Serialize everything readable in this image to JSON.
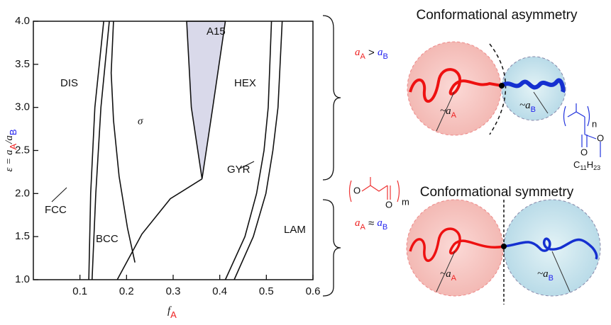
{
  "chart_data": {
    "type": "phase-diagram",
    "xlim": [
      0,
      0.6
    ],
    "ylim": [
      1,
      4
    ],
    "xticks": [
      0.1,
      0.2,
      0.3,
      0.4,
      0.5,
      0.6
    ],
    "yticks": [
      {
        "value": 1,
        "label": "1.0"
      },
      1.5,
      {
        "value": 2,
        "label": "2.0"
      },
      2.5,
      {
        "value": 3,
        "label": "3.0"
      },
      3.5,
      {
        "value": 4,
        "label": "4.0"
      }
    ],
    "x_label": {
      "main": "f",
      "sub": "A"
    },
    "y_label": {
      "prefix": "ε = a",
      "sub1": "A",
      "mid": "/a",
      "sub2": "B"
    },
    "boundaries": [
      {
        "f": [
          0.119,
          0.123,
          0.132,
          0.151
        ],
        "eps": [
          1.0,
          2.0,
          3.0,
          4.0
        ]
      },
      {
        "f": [
          0.126,
          0.134,
          0.145,
          0.163
        ],
        "eps": [
          1.0,
          2.0,
          3.0,
          4.0
        ]
      },
      {
        "f": [
          0.218,
          0.202,
          0.184,
          0.172,
          0.167,
          0.172
        ],
        "eps": [
          1.2,
          1.6,
          2.2,
          2.85,
          3.4,
          4.0
        ]
      },
      {
        "f": [
          0.18,
          0.233,
          0.294,
          0.362
        ],
        "eps": [
          1.0,
          1.53,
          1.94,
          2.17
        ]
      },
      {
        "f": [
          0.412,
          0.454,
          0.479,
          0.495,
          0.504,
          0.511
        ],
        "eps": [
          1.0,
          1.5,
          2.0,
          2.5,
          3.0,
          4.0
        ]
      },
      {
        "f": [
          0.431,
          0.472,
          0.499,
          0.514,
          0.525,
          0.534
        ],
        "eps": [
          1.0,
          1.5,
          2.0,
          2.5,
          3.0,
          4.0
        ]
      }
    ],
    "a15_region": {
      "color": "#d9d9ea",
      "f": [
        0.362,
        0.339,
        0.329,
        0.412,
        0.385,
        0.362
      ],
      "eps": [
        2.17,
        3.0,
        4.0,
        4.0,
        3.0,
        2.17
      ]
    },
    "phase_labels": [
      "DIS",
      "FCC",
      "BCC",
      "σ",
      "A15",
      "HEX",
      "GYR",
      "LAM"
    ]
  },
  "schematic": {
    "asym_title": "Conformational asymmetry",
    "sym_title": "Conformational symmetry",
    "asym_relation": {
      "a1": "a",
      "s1": "A",
      "op": " > ",
      "a2": "a",
      "s2": "B"
    },
    "sym_relation": {
      "a1": "a",
      "s1": "A",
      "op": " ≈ ",
      "a2": "a",
      "s2": "B"
    },
    "size_a": {
      "t": "~a",
      "s": "A"
    },
    "size_b": {
      "t": "~a",
      "s": "B"
    },
    "pla": [
      "O",
      "O",
      "m"
    ],
    "pma": [
      "n",
      "O",
      "O",
      "C",
      "11",
      "H",
      "23"
    ]
  }
}
